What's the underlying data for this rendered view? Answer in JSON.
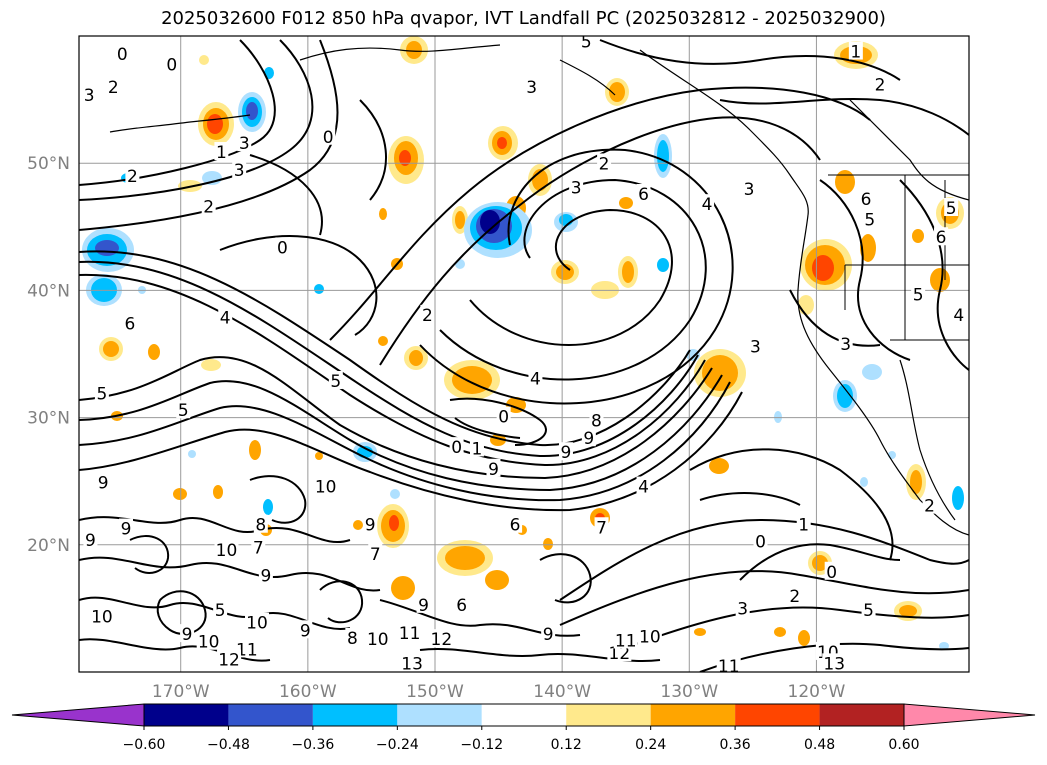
{
  "title": "2025032600 F012 850 hPa qvapor, IVT Landfall PC (2025032812 - 2025032900)",
  "map": {
    "lon_range": [
      -178,
      -108
    ],
    "lat_range": [
      10,
      60
    ],
    "grid": true,
    "lat_ticks": [
      {
        "value": 20,
        "label": "20°N"
      },
      {
        "value": 30,
        "label": "30°N"
      },
      {
        "value": 40,
        "label": "40°N"
      },
      {
        "value": 50,
        "label": "50°N"
      }
    ],
    "lon_ticks": [
      {
        "value": -170,
        "label": "170°W"
      },
      {
        "value": -160,
        "label": "160°W"
      },
      {
        "value": -150,
        "label": "150°W"
      },
      {
        "value": -140,
        "label": "140°W"
      },
      {
        "value": -130,
        "label": "130°W"
      },
      {
        "value": -120,
        "label": "120°W"
      }
    ]
  },
  "colorbar": {
    "colors": [
      "#9933cc",
      "#00008b",
      "#3355cc",
      "#00bfff",
      "#aee0ff",
      "#ffffff",
      "#ffe98c",
      "#ffa500",
      "#ff4500",
      "#b22222",
      "#ff88aa"
    ],
    "levels": [
      {
        "value": -0.6,
        "label": "−0.60"
      },
      {
        "value": -0.48,
        "label": "−0.48"
      },
      {
        "value": -0.36,
        "label": "−0.36"
      },
      {
        "value": -0.24,
        "label": "−0.24"
      },
      {
        "value": -0.12,
        "label": "−0.12"
      },
      {
        "value": 0.12,
        "label": "0.12"
      },
      {
        "value": 0.24,
        "label": "0.24"
      },
      {
        "value": 0.36,
        "label": "0.36"
      },
      {
        "value": 0.48,
        "label": "0.48"
      },
      {
        "value": 0.6,
        "label": "0.60"
      }
    ]
  },
  "contour_labels": [
    {
      "text": "0",
      "lon": -174.6,
      "lat": 58.5
    },
    {
      "text": "0",
      "lon": -170.7,
      "lat": 57.7
    },
    {
      "text": "3",
      "lon": -177.2,
      "lat": 55.3
    },
    {
      "text": "2",
      "lon": -175.3,
      "lat": 55.9
    },
    {
      "text": "3",
      "lon": -165.0,
      "lat": 51.5
    },
    {
      "text": "0",
      "lon": -158.4,
      "lat": 52.0
    },
    {
      "text": "1",
      "lon": -166.8,
      "lat": 50.8
    },
    {
      "text": "3",
      "lon": -165.4,
      "lat": 49.4
    },
    {
      "text": "2",
      "lon": -173.8,
      "lat": 48.9
    },
    {
      "text": "2",
      "lon": -167.8,
      "lat": 46.5
    },
    {
      "text": "0",
      "lon": -162.0,
      "lat": 43.3
    },
    {
      "text": "2",
      "lon": -150.6,
      "lat": 38.0
    },
    {
      "text": "6",
      "lon": -174.0,
      "lat": 37.3
    },
    {
      "text": "4",
      "lon": -166.5,
      "lat": 37.8
    },
    {
      "text": "5",
      "lon": -176.2,
      "lat": 31.8
    },
    {
      "text": "5",
      "lon": -157.8,
      "lat": 32.8
    },
    {
      "text": "5",
      "lon": -169.8,
      "lat": 30.5
    },
    {
      "text": "3",
      "lon": -142.4,
      "lat": 55.9
    },
    {
      "text": "2",
      "lon": -136.7,
      "lat": 49.9
    },
    {
      "text": "3",
      "lon": -138.9,
      "lat": 48.0
    },
    {
      "text": "6",
      "lon": -133.6,
      "lat": 47.5
    },
    {
      "text": "4",
      "lon": -128.6,
      "lat": 46.7
    },
    {
      "text": "3",
      "lon": -125.3,
      "lat": 47.9
    },
    {
      "text": "5",
      "lon": -138.1,
      "lat": 59.5
    },
    {
      "text": "1",
      "lon": -116.9,
      "lat": 58.7
    },
    {
      "text": "2",
      "lon": -115.0,
      "lat": 56.1
    },
    {
      "text": "4",
      "lon": -142.1,
      "lat": 33.0
    },
    {
      "text": "0",
      "lon": -144.6,
      "lat": 30.0
    },
    {
      "text": "0",
      "lon": -148.3,
      "lat": 27.6
    },
    {
      "text": "1",
      "lon": -146.7,
      "lat": 27.5
    },
    {
      "text": "9",
      "lon": -145.4,
      "lat": 25.9
    },
    {
      "text": "9",
      "lon": -139.7,
      "lat": 27.2
    },
    {
      "text": "9",
      "lon": -137.9,
      "lat": 28.3
    },
    {
      "text": "8",
      "lon": -137.3,
      "lat": 29.7
    },
    {
      "text": "7",
      "lon": -136.9,
      "lat": 21.3
    },
    {
      "text": "4",
      "lon": -133.6,
      "lat": 24.5
    },
    {
      "text": "6",
      "lon": -143.7,
      "lat": 21.5
    },
    {
      "text": "6",
      "lon": -147.9,
      "lat": 15.2
    },
    {
      "text": "9",
      "lon": -150.9,
      "lat": 15.2
    },
    {
      "text": "9",
      "lon": -163.3,
      "lat": 17.5
    },
    {
      "text": "10",
      "lon": -158.6,
      "lat": 24.5
    },
    {
      "text": "10",
      "lon": -166.4,
      "lat": 19.5
    },
    {
      "text": "7",
      "lon": -163.9,
      "lat": 19.7
    },
    {
      "text": "8",
      "lon": -163.7,
      "lat": 21.5
    },
    {
      "text": "9",
      "lon": -155.1,
      "lat": 21.5
    },
    {
      "text": "7",
      "lon": -154.7,
      "lat": 19.2
    },
    {
      "text": "9",
      "lon": -176.1,
      "lat": 24.8
    },
    {
      "text": "9",
      "lon": -174.3,
      "lat": 21.2
    },
    {
      "text": "9",
      "lon": -177.1,
      "lat": 20.3
    },
    {
      "text": "10",
      "lon": -176.2,
      "lat": 14.3
    },
    {
      "text": "5",
      "lon": -166.9,
      "lat": 14.8
    },
    {
      "text": "9",
      "lon": -169.5,
      "lat": 12.9
    },
    {
      "text": "10",
      "lon": -164.0,
      "lat": 13.8
    },
    {
      "text": "9",
      "lon": -160.2,
      "lat": 13.2
    },
    {
      "text": "8",
      "lon": -156.5,
      "lat": 12.6
    },
    {
      "text": "10",
      "lon": -167.8,
      "lat": 12.3
    },
    {
      "text": "11",
      "lon": -164.8,
      "lat": 11.7
    },
    {
      "text": "12",
      "lon": -166.2,
      "lat": 10.9
    },
    {
      "text": "11",
      "lon": -152.0,
      "lat": 13.0
    },
    {
      "text": "12",
      "lon": -149.5,
      "lat": 12.5
    },
    {
      "text": "10",
      "lon": -154.5,
      "lat": 12.5
    },
    {
      "text": "13",
      "lon": -151.8,
      "lat": 10.6
    },
    {
      "text": "9",
      "lon": -141.1,
      "lat": 12.9
    },
    {
      "text": "12",
      "lon": -135.5,
      "lat": 11.4
    },
    {
      "text": "11",
      "lon": -135.0,
      "lat": 12.4
    },
    {
      "text": "10",
      "lon": -133.1,
      "lat": 12.7
    },
    {
      "text": "11",
      "lon": -126.9,
      "lat": 10.4
    },
    {
      "text": "1",
      "lon": -121.0,
      "lat": 21.5
    },
    {
      "text": "0",
      "lon": -118.8,
      "lat": 17.8
    },
    {
      "text": "0",
      "lon": -124.4,
      "lat": 20.2
    },
    {
      "text": "2",
      "lon": -121.7,
      "lat": 15.9
    },
    {
      "text": "3",
      "lon": -125.8,
      "lat": 14.9
    },
    {
      "text": "5",
      "lon": -115.9,
      "lat": 14.8
    },
    {
      "text": "2",
      "lon": -111.1,
      "lat": 23.0
    },
    {
      "text": "3",
      "lon": -124.8,
      "lat": 35.5
    },
    {
      "text": "3",
      "lon": -117.7,
      "lat": 35.7
    },
    {
      "text": "5",
      "lon": -112.0,
      "lat": 39.6
    },
    {
      "text": "6",
      "lon": -110.2,
      "lat": 44.1
    },
    {
      "text": "6",
      "lon": -116.1,
      "lat": 47.1
    },
    {
      "text": "5",
      "lon": -115.8,
      "lat": 45.5
    },
    {
      "text": "5",
      "lon": -109.4,
      "lat": 46.4
    },
    {
      "text": "4",
      "lon": -108.8,
      "lat": 38.0
    },
    {
      "text": "10",
      "lon": -119.1,
      "lat": 11.5
    },
    {
      "text": "13",
      "lon": -118.6,
      "lat": 10.6
    }
  ]
}
